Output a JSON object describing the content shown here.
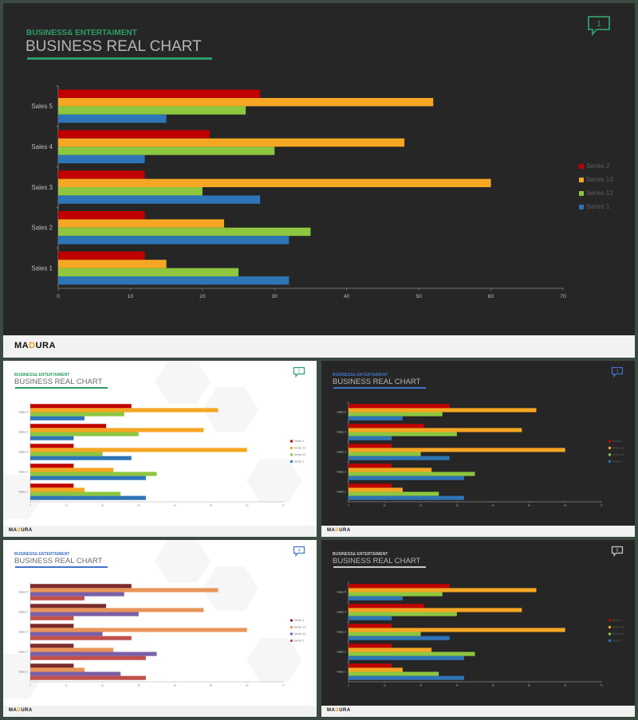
{
  "slides": [
    {
      "theme": "dark",
      "subtitle": "BUSINESS& ENTERTAIMENT",
      "title": "BUSINESS REAL CHART",
      "accent": "#2f9c6a",
      "icon_number": "1",
      "brand": {
        "pre": "MA",
        "o": "D",
        "post": "URA"
      },
      "palette": [
        "#c00000",
        "#f5a623",
        "#8dc63f",
        "#2e75b6"
      ]
    },
    {
      "theme": "light",
      "subtitle": "BUSINESS& ENTERTAIMENT",
      "title": "BUSINESS REAL CHART",
      "accent": "#2f9c6a",
      "icon_number": "2",
      "brand": {
        "pre": "MA",
        "o": "D",
        "post": "URA"
      },
      "palette": [
        "#c00000",
        "#f5a623",
        "#8dc63f",
        "#2e75b6"
      ]
    },
    {
      "theme": "dark",
      "subtitle": "BUSINESS& ENTERTAIMENT",
      "title": "BUSINESS REAL CHART",
      "accent": "#4472c4",
      "icon_number": "3",
      "brand": {
        "pre": "MA",
        "o": "D",
        "post": "URA"
      },
      "palette": [
        "#c00000",
        "#f5a623",
        "#8dc63f",
        "#2e75b6"
      ]
    },
    {
      "theme": "light",
      "subtitle": "BUSINESS& ENTERTAIMENT",
      "title": "BUSINESS REAL CHART",
      "accent": "#4472c4",
      "icon_number": "4",
      "brand": {
        "pre": "MA",
        "o": "D",
        "post": "URA"
      },
      "palette": [
        "#7b2c2c",
        "#e8955a",
        "#7a5fa8",
        "#c0504d"
      ]
    },
    {
      "theme": "dark",
      "subtitle": "BUSINESS& ENTERTAIMENT",
      "title": "BUSINESS REAL CHART",
      "accent": "#c8c8c8",
      "icon_number": "5",
      "brand": {
        "pre": "MA",
        "o": "D",
        "post": "URA"
      },
      "palette": [
        "#c00000",
        "#f5a623",
        "#8dc63f",
        "#2e75b6"
      ]
    }
  ],
  "chart_data": {
    "type": "bar",
    "orientation": "horizontal",
    "categories": [
      "Sales 1",
      "Sales 2",
      "Sales 3",
      "Sales 4",
      "Sales 5"
    ],
    "series": [
      {
        "name": "Series 2",
        "values": [
          12,
          12,
          12,
          21,
          28
        ]
      },
      {
        "name": "Series 13",
        "values": [
          15,
          23,
          60,
          48,
          52
        ]
      },
      {
        "name": "Series 12",
        "values": [
          25,
          35,
          20,
          30,
          26
        ]
      },
      {
        "name": "Series 1",
        "values": [
          32,
          32,
          28,
          12,
          15
        ]
      }
    ],
    "xlim": [
      0,
      70
    ],
    "x_ticks": [
      0,
      10,
      20,
      30,
      40,
      50,
      60,
      70
    ],
    "legend_position": "right",
    "grid": false
  }
}
